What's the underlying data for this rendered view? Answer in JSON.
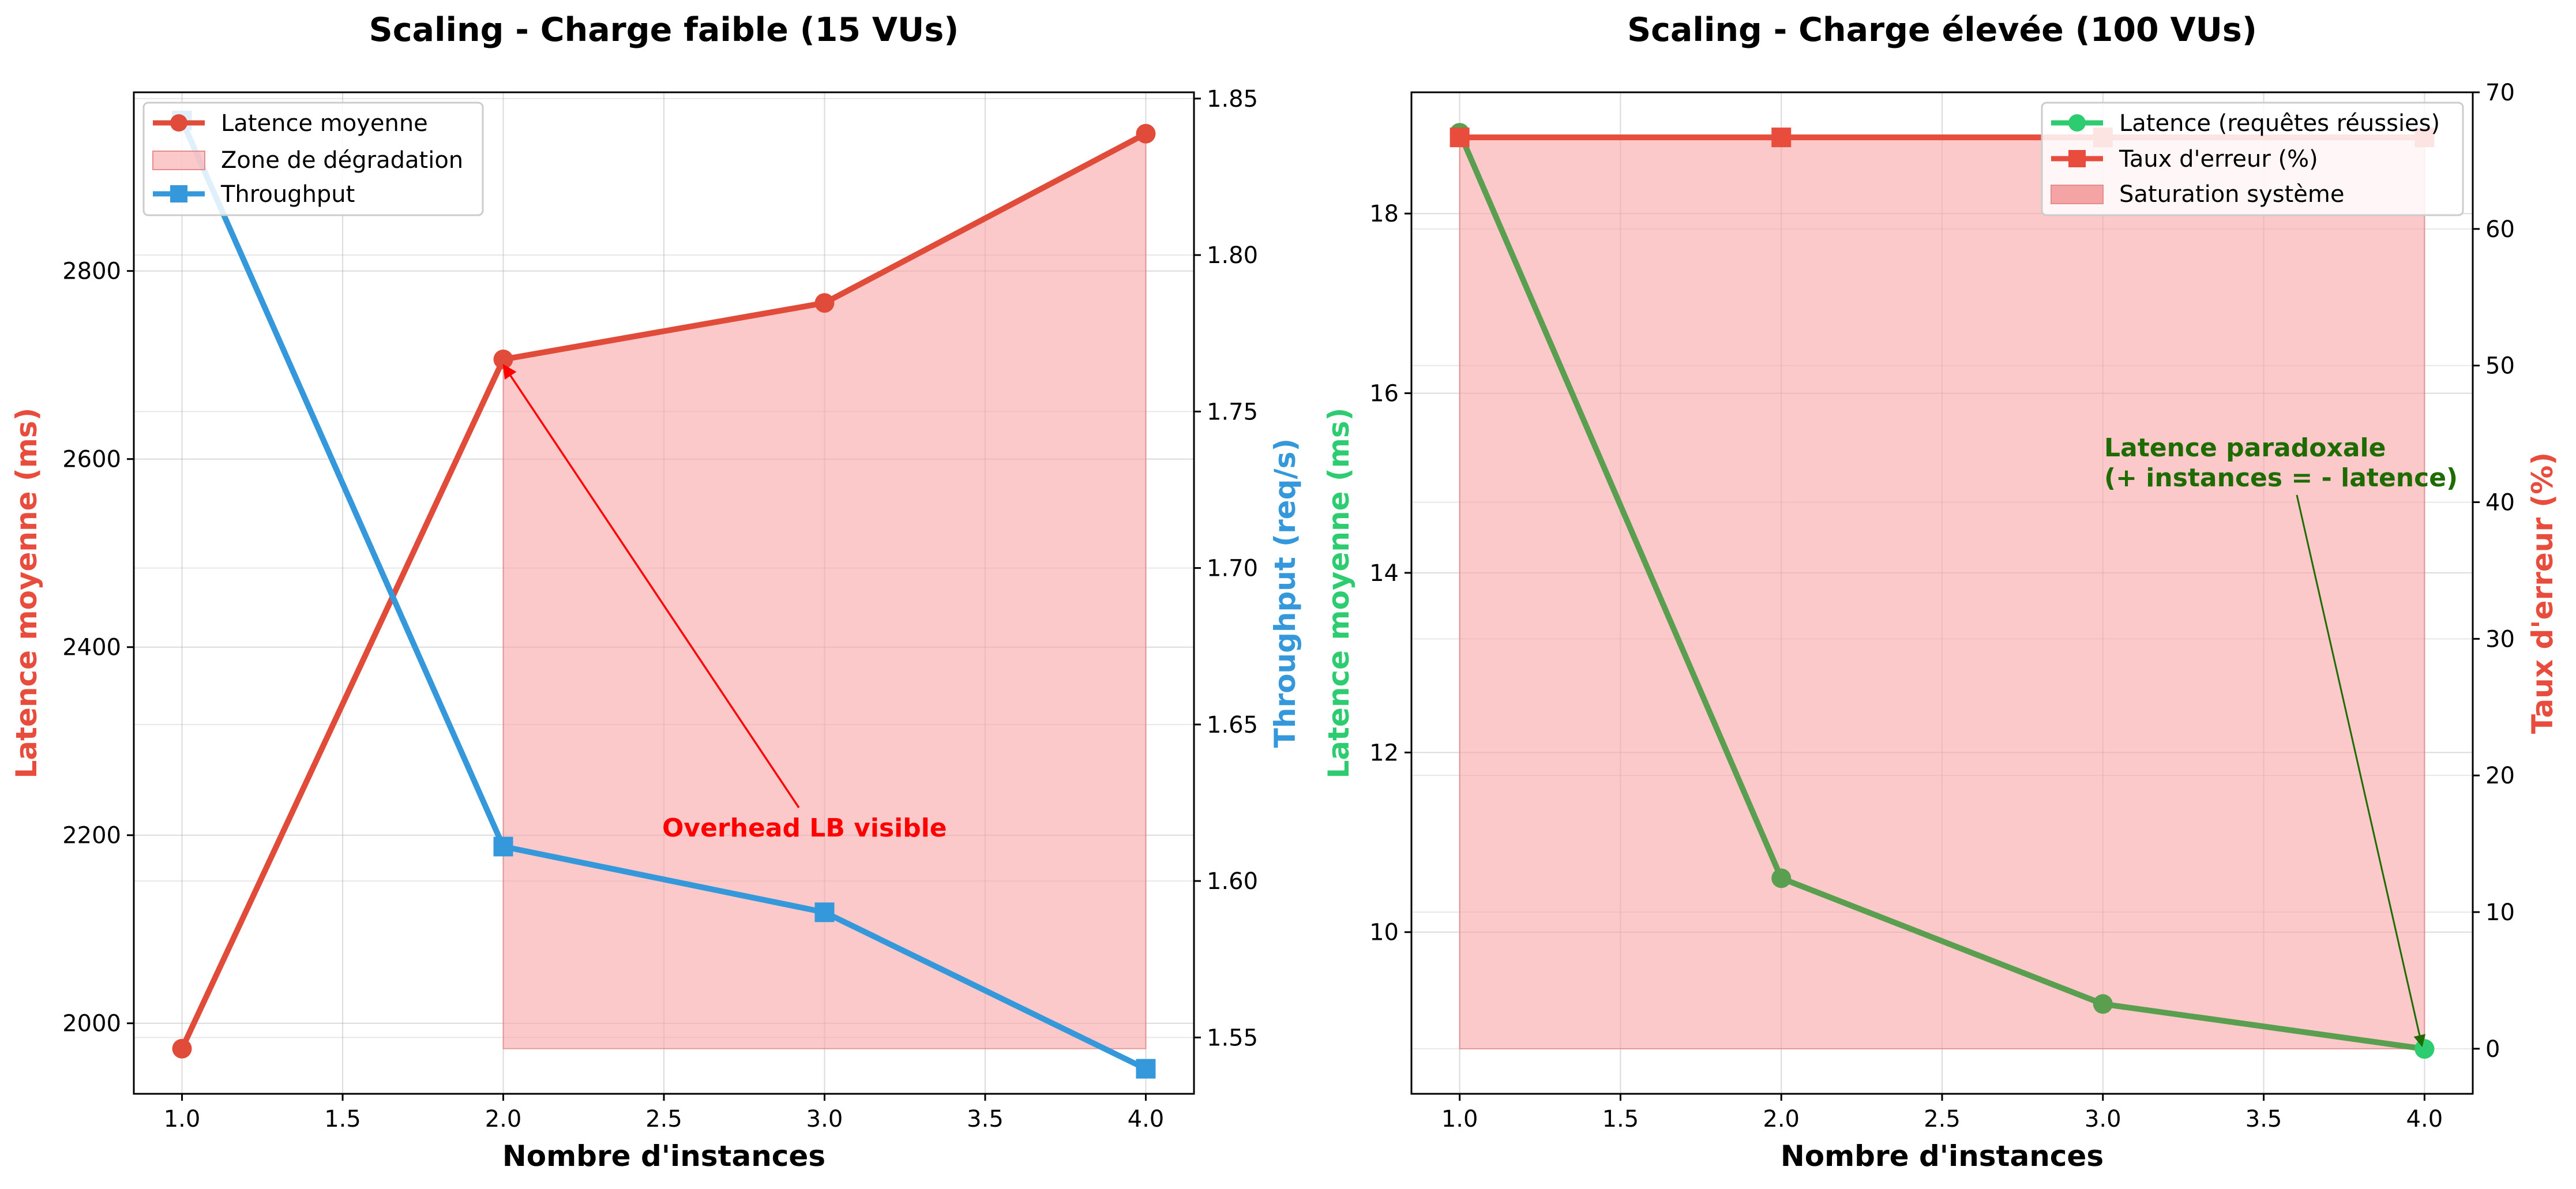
{
  "chart_data": [
    {
      "type": "line",
      "title": "Scaling - Charge faible (15 VUs)",
      "xlabel": "Nombre d'instances",
      "ylabel": "Latence moyenne (ms)",
      "y2label": "Throughput (req/s)",
      "x": [
        1.0,
        2.0,
        3.0,
        4.0
      ],
      "xlim": [
        0.85,
        4.15
      ],
      "ylim": [
        1925,
        2990
      ],
      "y2lim": [
        1.532,
        1.852
      ],
      "xticks": [
        "1.0",
        "1.5",
        "2.0",
        "2.5",
        "3.0",
        "3.5",
        "4.0"
      ],
      "yticks": [
        "2000",
        "2200",
        "2400",
        "2600",
        "2800"
      ],
      "y2ticks": [
        "1.55",
        "1.60",
        "1.65",
        "1.70",
        "1.75",
        "1.80",
        "1.85"
      ],
      "grid": true,
      "legend_position": "upper left",
      "series": [
        {
          "name": "Latence moyenne",
          "axis": "left",
          "marker": "circle",
          "color": "#e04b3a",
          "values": [
            1973,
            2706,
            2766,
            2946
          ]
        },
        {
          "name": "Throughput",
          "axis": "right",
          "marker": "square",
          "color": "#3498db",
          "values": [
            1.843,
            1.611,
            1.59,
            1.54
          ]
        }
      ],
      "fill": {
        "name": "Zone de dégradation",
        "color": "#f8a5a5",
        "x_from": 2.0,
        "x_to": 4.0,
        "lower": 1973,
        "upper": [
          2706,
          2766,
          2946
        ]
      },
      "annotation": {
        "text": "Overhead LB visible",
        "color": "#ff0000",
        "text_at": [
          2.5,
          2200
        ],
        "arrow_to": [
          2.0,
          2706
        ]
      }
    },
    {
      "type": "line",
      "title": "Scaling - Charge élevée (100 VUs)",
      "xlabel": "Nombre d'instances",
      "ylabel": "Latence moyenne (ms)",
      "y2label": "Taux d'erreur (%)",
      "x": [
        1.0,
        2.0,
        3.0,
        4.0
      ],
      "xlim": [
        0.85,
        4.15
      ],
      "ylim": [
        8.2,
        19.35
      ],
      "y2lim": [
        -3.3,
        70
      ],
      "xticks": [
        "1.0",
        "1.5",
        "2.0",
        "2.5",
        "3.0",
        "3.5",
        "4.0"
      ],
      "yticks": [
        "10",
        "12",
        "14",
        "16",
        "18"
      ],
      "y2ticks": [
        "0",
        "10",
        "20",
        "30",
        "40",
        "50",
        "60",
        "70"
      ],
      "grid": true,
      "legend_position": "upper right",
      "series": [
        {
          "name": "Latence (requêtes réussies)",
          "axis": "left",
          "marker": "circle",
          "color": "#5a9e50",
          "marker_color": "#2ecc71",
          "values": [
            18.9,
            10.6,
            9.2,
            8.7
          ]
        },
        {
          "name": "Taux d'erreur (%)",
          "axis": "right",
          "marker": "square",
          "color": "#e74c3c",
          "values": [
            66.7,
            66.7,
            66.7,
            66.7
          ]
        }
      ],
      "fill": {
        "name": "Saturation système",
        "color": "#f8a5a5",
        "x_from": 1.0,
        "x_to": 4.0,
        "lower": 0,
        "upper": 66.7,
        "axis": "right"
      },
      "annotation": {
        "text_lines": [
          "Latence paradoxale",
          "(+ instances = - latence)"
        ],
        "color": "#1e6b00",
        "text_at": [
          3.0,
          15.3
        ],
        "arrow_to": [
          4.0,
          8.7
        ]
      }
    }
  ],
  "colors": {
    "left_label_1": "#e74c3c",
    "right_label_1": "#3498db",
    "left_label_2": "#2ecc71",
    "right_label_2": "#e74c3c"
  }
}
